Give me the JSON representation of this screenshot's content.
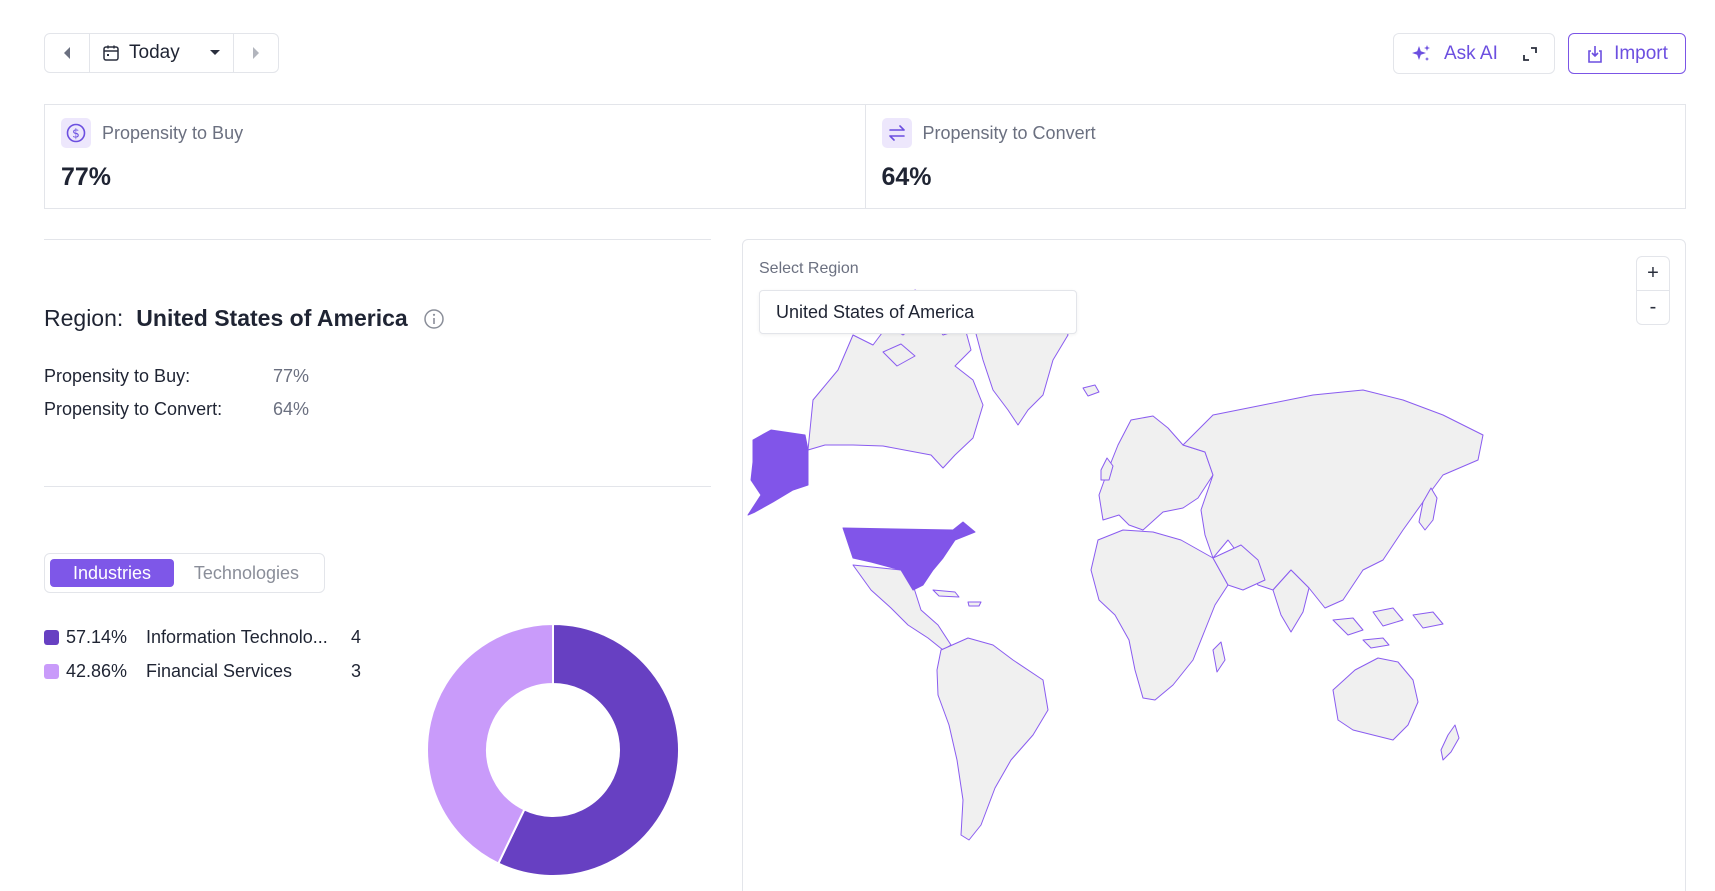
{
  "toolbar": {
    "date_label": "Today",
    "ask_ai_label": "Ask AI",
    "import_label": "Import"
  },
  "kpis": [
    {
      "label": "Propensity to Buy",
      "value": "77%",
      "icon": "dollar-circle-icon"
    },
    {
      "label": "Propensity to Convert",
      "value": "64%",
      "icon": "swap-arrows-icon"
    }
  ],
  "region": {
    "label": "Region:",
    "name": "United States of America",
    "stats": [
      {
        "label": "Propensity to Buy:",
        "value": "77%"
      },
      {
        "label": "Propensity to Convert:",
        "value": "64%"
      }
    ]
  },
  "breakdown": {
    "tabs": [
      "Industries",
      "Technologies"
    ],
    "active_tab": "Industries",
    "items": [
      {
        "pct": "57.14%",
        "name": "Information Technolo...",
        "count": "4",
        "color": "#6740c2"
      },
      {
        "pct": "42.86%",
        "name": "Financial Services",
        "count": "3",
        "color": "#c99bfa"
      }
    ]
  },
  "chart_data": {
    "type": "pie",
    "categories": [
      "Information Technolo...",
      "Financial Services"
    ],
    "values": [
      4,
      3
    ],
    "colors": [
      "#6740c2",
      "#c99bfa"
    ]
  },
  "map": {
    "select_label": "Select Region",
    "selected_region": "United States of America",
    "zoom_in": "+",
    "zoom_out": "-",
    "highlight_color": "#8155e9",
    "land_color": "#f0f0f0",
    "border_color": "#8a5cf0"
  }
}
